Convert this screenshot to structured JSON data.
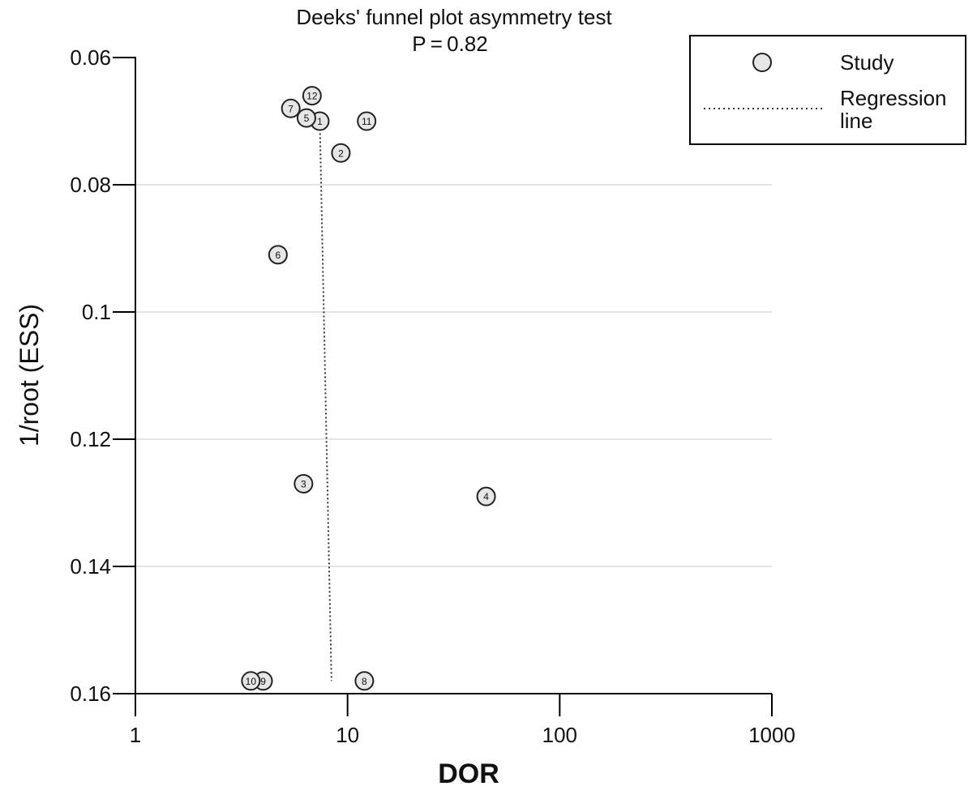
{
  "chart_data": {
    "type": "scatter",
    "title": "Deeks' funnel plot asymmetry test",
    "subtitle": "P = 0.82",
    "xlabel": "DOR",
    "ylabel": "1/root (ESS)",
    "x_scale": "log",
    "xlim": [
      1,
      1000
    ],
    "ylim": [
      0.06,
      0.16
    ],
    "y_inverted": true,
    "x_ticks": [
      1,
      10,
      100,
      1000
    ],
    "x_tick_labels": [
      "1",
      "10",
      "100",
      "1000"
    ],
    "y_ticks": [
      0.06,
      0.08,
      0.1,
      0.12,
      0.14,
      0.16
    ],
    "y_tick_labels": [
      "0.06",
      "0.08",
      "0.1",
      "0.12",
      "0.14",
      "0.16"
    ],
    "grid": "horizontal",
    "legend_position": "top-right",
    "legend": {
      "study_label": "Study",
      "regression_label_line1": "Regression",
      "regression_label_line2": "line"
    },
    "points": [
      {
        "label": "1",
        "x": 7.4,
        "y": 0.07
      },
      {
        "label": "2",
        "x": 9.3,
        "y": 0.075
      },
      {
        "label": "3",
        "x": 6.2,
        "y": 0.127
      },
      {
        "label": "4",
        "x": 45,
        "y": 0.129
      },
      {
        "label": "5",
        "x": 6.4,
        "y": 0.0695
      },
      {
        "label": "6",
        "x": 4.7,
        "y": 0.091
      },
      {
        "label": "7",
        "x": 5.4,
        "y": 0.068
      },
      {
        "label": "8",
        "x": 12,
        "y": 0.158
      },
      {
        "label": "9",
        "x": 4.0,
        "y": 0.158
      },
      {
        "label": "10",
        "x": 3.5,
        "y": 0.158
      },
      {
        "label": "11",
        "x": 12.3,
        "y": 0.07
      },
      {
        "label": "12",
        "x": 6.8,
        "y": 0.066
      }
    ],
    "regression_line": [
      {
        "x": 7.4,
        "y": 0.07
      },
      {
        "x": 8.4,
        "y": 0.158
      }
    ],
    "colors": {
      "point_fill": "#e6e6e6",
      "point_stroke": "#222222",
      "grid": "#e5e5e5",
      "axis": "#000000",
      "regression": "#333333"
    }
  }
}
